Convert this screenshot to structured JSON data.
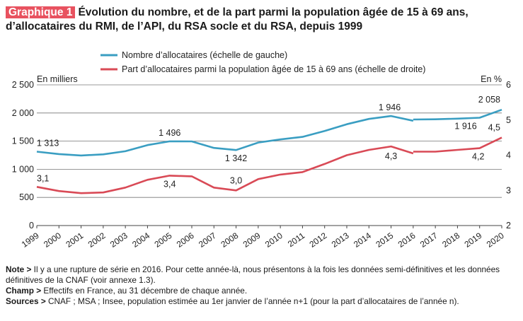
{
  "title": {
    "badge": "Graphique 1",
    "line1": "Évolution du nombre, et de la part parmi la population âgée de 15 à 69 ans,",
    "line2": "d’allocataires du RMI, de l’API, du RSA socle et du RSA, depuis 1999"
  },
  "chart_data": {
    "type": "line",
    "x": [
      "1999",
      "2000",
      "2001",
      "2002",
      "2003",
      "2004",
      "2005",
      "2006",
      "2007",
      "2008",
      "2009",
      "2010",
      "2011",
      "2012",
      "2013",
      "2014",
      "2015",
      "2016",
      "2016",
      "2017",
      "2018",
      "2019",
      "2020"
    ],
    "left_axis": {
      "label": "En milliers",
      "ylim": [
        0,
        2500
      ],
      "ticks": [
        "0",
        "500",
        "1 000",
        "1 500",
        "2 000",
        "2 500"
      ]
    },
    "right_axis": {
      "label": "En %",
      "ylim": [
        2,
        6
      ],
      "ticks": [
        "2",
        "3",
        "4",
        "5",
        "6"
      ]
    },
    "series": [
      {
        "name": "Nombre d’allocataires (échelle de gauche)",
        "color": "#3a9ec2",
        "axis": "left",
        "segments": [
          {
            "x": [
              1999,
              2000,
              2001,
              2002,
              2003,
              2004,
              2005,
              2006,
              2007,
              2008,
              2009,
              2010,
              2011,
              2012,
              2013,
              2014,
              2015,
              2016
            ],
            "values": [
              1313,
              1270,
              1245,
              1265,
              1320,
              1430,
              1496,
              1495,
              1380,
              1342,
              1475,
              1530,
              1575,
              1680,
              1800,
              1895,
              1946,
              1862
            ]
          },
          {
            "x": [
              2016,
              2017,
              2018,
              2019,
              2020
            ],
            "values": [
              1885,
              1888,
              1900,
              1916,
              2058
            ]
          }
        ],
        "labels": [
          {
            "x": 1999,
            "text": "1 313"
          },
          {
            "x": 2005,
            "text": "1 496"
          },
          {
            "x": 2008,
            "text": "1 342"
          },
          {
            "x": 2015,
            "text": "1 946"
          },
          {
            "x": 2019,
            "text": "1 916"
          },
          {
            "x": 2020,
            "text": "2 058"
          }
        ]
      },
      {
        "name": "Part d’allocataires parmi la population âgée de 15 à 69 ans (échelle de droite)",
        "color": "#d94a56",
        "axis": "right",
        "segments": [
          {
            "x": [
              1999,
              2000,
              2001,
              2002,
              2003,
              2004,
              2005,
              2006,
              2007,
              2008,
              2009,
              2010,
              2011,
              2012,
              2013,
              2014,
              2015,
              2016
            ],
            "values": [
              3.1,
              2.98,
              2.92,
              2.94,
              3.08,
              3.3,
              3.42,
              3.4,
              3.08,
              3.0,
              3.32,
              3.45,
              3.52,
              3.75,
              4.0,
              4.15,
              4.25,
              4.05
            ]
          },
          {
            "x": [
              2016,
              2017,
              2018,
              2019,
              2020
            ],
            "values": [
              4.1,
              4.1,
              4.15,
              4.2,
              4.5
            ]
          }
        ],
        "labels": [
          {
            "x": 1999,
            "text": "3,1"
          },
          {
            "x": 2005,
            "text": "3,4"
          },
          {
            "x": 2008,
            "text": "3,0"
          },
          {
            "x": 2015,
            "text": "4,3"
          },
          {
            "x": 2019,
            "text": "4,2"
          },
          {
            "x": 2020,
            "text": "4,5"
          }
        ]
      }
    ],
    "grid": true,
    "legend": "top"
  },
  "notes": {
    "note_label": "Note >",
    "note_text": " Il y a une rupture de série en 2016. Pour cette année-là, nous présentons à la fois les données semi-définitives et les données définitives de la CNAF (voir annexe 1.3).",
    "champ_label": "Champ >",
    "champ_text": " Effectifs en France, au 31 décembre de chaque année.",
    "sources_label": "Sources >",
    "sources_text": " CNAF ; MSA ; Insee, population estimée au 1er janvier de l’année n+1 (pour la part d’allocataires de l’année n)."
  }
}
